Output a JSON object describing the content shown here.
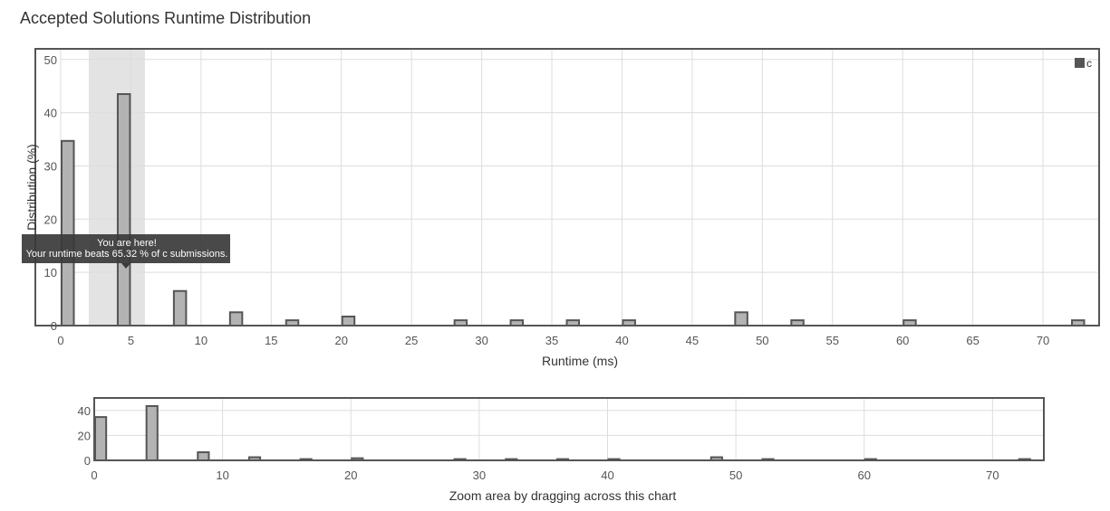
{
  "page": {
    "title": "Accepted Solutions Runtime Distribution",
    "navigator_hint": "Zoom area by dragging across this chart"
  },
  "chart_data": {
    "type": "bar",
    "title": "Accepted Solutions Runtime Distribution",
    "xlabel": "Runtime (ms)",
    "ylabel": "Distribution (%)",
    "xlim": [
      0,
      74
    ],
    "ylim": [
      0,
      52
    ],
    "x_ticks": [
      0,
      5,
      10,
      15,
      20,
      25,
      30,
      35,
      40,
      45,
      50,
      55,
      60,
      65,
      70
    ],
    "y_ticks": [
      0,
      10,
      20,
      30,
      40,
      50
    ],
    "grid": true,
    "legend_position": "top-right",
    "bar_color": "#b3b3b3",
    "bar_border_color": "#555555",
    "highlight_range": [
      2,
      6
    ],
    "highlight_color": "#e3e3e3",
    "series": [
      {
        "name": "c",
        "x": [
          0,
          4,
          8,
          12,
          16,
          20,
          28,
          32,
          36,
          40,
          48,
          52,
          60,
          72
        ],
        "values": [
          34.7,
          43.5,
          6.5,
          2.5,
          1,
          1.7,
          1,
          1,
          1,
          1,
          2.5,
          1,
          1,
          1
        ]
      }
    ],
    "tooltip": {
      "line1": "You are here!",
      "line2": "Your runtime beats 65.32 % of c submissions.",
      "x": 4,
      "y": 12
    },
    "navigator": {
      "xlabel": "Zoom area by dragging across this chart",
      "x_ticks": [
        0,
        10,
        20,
        30,
        40,
        50,
        60,
        70
      ],
      "y_ticks": [
        0,
        20,
        40
      ]
    }
  }
}
